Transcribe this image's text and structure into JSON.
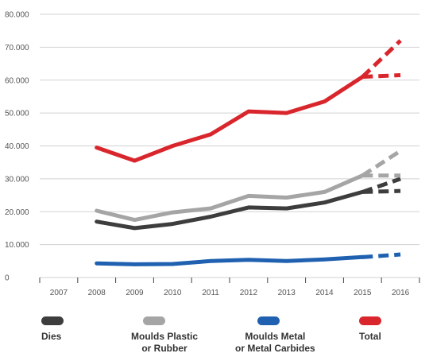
{
  "chart_data": {
    "type": "line",
    "title": "",
    "xlabel": "",
    "ylabel": "",
    "categories": [
      "2007",
      "2008",
      "2009",
      "2010",
      "2011",
      "2012",
      "2013",
      "2014",
      "2015",
      "2016"
    ],
    "y_ticks": [
      "0",
      "10.000",
      "20.000",
      "30.000",
      "40.000",
      "50.000",
      "60.000",
      "70.000",
      "80.000"
    ],
    "ylim": [
      0,
      80000
    ],
    "grid": "horizontal",
    "legend_position": "bottom",
    "series": [
      {
        "name": "Dies",
        "color": "#3d3d3d",
        "values": [
          null,
          17000,
          15000,
          16300,
          18500,
          21300,
          21000,
          22800,
          26000,
          null
        ],
        "projections": [
          [
            26000,
            30000
          ],
          [
            26000,
            26300
          ]
        ]
      },
      {
        "name": "Moulds Plastic or Rubber",
        "color": "#a5a5a5",
        "values": [
          null,
          20300,
          17500,
          19800,
          21000,
          24800,
          24300,
          26000,
          31000,
          null
        ],
        "projections": [
          [
            31000,
            38500
          ],
          [
            31000,
            31000
          ]
        ]
      },
      {
        "name": "Moulds Metal or Metal Carbides",
        "color": "#1f61b0",
        "values": [
          null,
          4300,
          4000,
          4100,
          5000,
          5400,
          5000,
          5500,
          6200,
          null
        ],
        "projections": [
          [
            6200,
            7000
          ]
        ]
      },
      {
        "name": "Total",
        "color": "#d9262c",
        "values": [
          null,
          39500,
          35500,
          40000,
          43500,
          50500,
          50000,
          53500,
          61000,
          null
        ],
        "projections": [
          [
            61000,
            72000
          ],
          [
            61000,
            61500
          ]
        ]
      }
    ]
  },
  "legend": [
    {
      "line1": "Dies",
      "line2": ""
    },
    {
      "line1": "Moulds Plastic",
      "line2": "or Rubber"
    },
    {
      "line1": "Moulds Metal",
      "line2": "or Metal Carbides"
    },
    {
      "line1": "Total",
      "line2": ""
    }
  ]
}
